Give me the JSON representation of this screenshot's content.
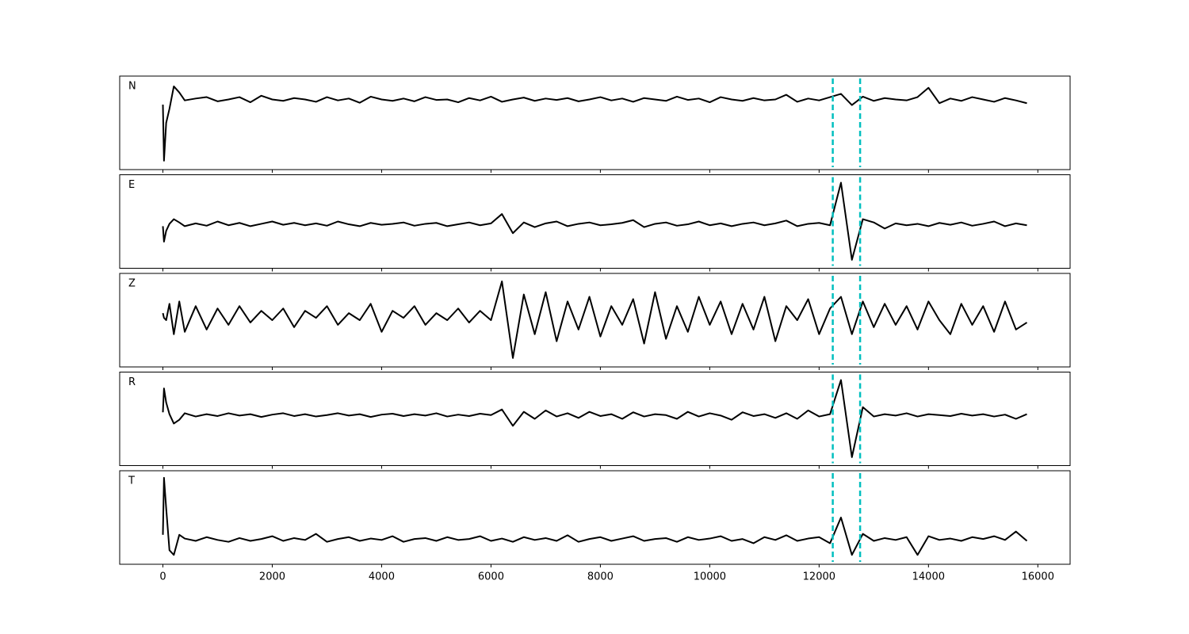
{
  "chart_data": {
    "type": "line",
    "x": [
      0,
      20,
      60,
      120,
      200,
      300,
      400,
      600,
      800,
      1000,
      1200,
      1400,
      1600,
      1800,
      2000,
      2200,
      2400,
      2600,
      2800,
      3000,
      3200,
      3400,
      3600,
      3800,
      4000,
      4200,
      4400,
      4600,
      4800,
      5000,
      5200,
      5400,
      5600,
      5800,
      6000,
      6200,
      6400,
      6600,
      6800,
      7000,
      7200,
      7400,
      7600,
      7800,
      8000,
      8200,
      8400,
      8600,
      8800,
      9000,
      9200,
      9400,
      9600,
      9800,
      10000,
      10200,
      10400,
      10600,
      10800,
      11000,
      11200,
      11400,
      11600,
      11800,
      12000,
      12200,
      12400,
      12600,
      12800,
      13000,
      13200,
      13400,
      13600,
      13800,
      14000,
      14200,
      14400,
      14600,
      14800,
      15000,
      15200,
      15400,
      15600,
      15800
    ],
    "series": [
      {
        "name": "N",
        "color": "#000000",
        "values": [
          0.39,
          -0.81,
          0.0,
          0.3,
          0.78,
          0.65,
          0.48,
          0.52,
          0.55,
          0.46,
          0.5,
          0.55,
          0.44,
          0.58,
          0.5,
          0.47,
          0.53,
          0.5,
          0.45,
          0.55,
          0.48,
          0.52,
          0.43,
          0.56,
          0.5,
          0.47,
          0.52,
          0.46,
          0.55,
          0.49,
          0.5,
          0.44,
          0.53,
          0.48,
          0.56,
          0.45,
          0.5,
          0.54,
          0.47,
          0.52,
          0.49,
          0.53,
          0.46,
          0.5,
          0.55,
          0.48,
          0.52,
          0.45,
          0.53,
          0.5,
          0.47,
          0.56,
          0.49,
          0.52,
          0.44,
          0.55,
          0.5,
          0.47,
          0.53,
          0.48,
          0.5,
          0.6,
          0.45,
          0.52,
          0.48,
          0.55,
          0.62,
          0.38,
          0.56,
          0.47,
          0.53,
          0.5,
          0.48,
          0.55,
          0.75,
          0.42,
          0.52,
          0.47,
          0.55,
          0.5,
          0.45,
          0.53,
          0.48,
          0.42
        ]
      },
      {
        "name": "E",
        "color": "#000000",
        "values": [
          -0.1,
          -0.43,
          -0.2,
          -0.05,
          0.05,
          -0.02,
          -0.1,
          -0.04,
          -0.09,
          0.0,
          -0.08,
          -0.03,
          -0.1,
          -0.05,
          0.0,
          -0.07,
          -0.03,
          -0.08,
          -0.04,
          -0.09,
          0.0,
          -0.06,
          -0.1,
          -0.03,
          -0.07,
          -0.05,
          -0.02,
          -0.09,
          -0.05,
          -0.03,
          -0.1,
          -0.06,
          -0.02,
          -0.08,
          -0.04,
          0.16,
          -0.25,
          -0.02,
          -0.12,
          -0.04,
          0.0,
          -0.1,
          -0.05,
          -0.02,
          -0.08,
          -0.06,
          -0.03,
          0.03,
          -0.12,
          -0.05,
          -0.02,
          -0.09,
          -0.06,
          0.0,
          -0.08,
          -0.04,
          -0.1,
          -0.05,
          -0.02,
          -0.08,
          -0.04,
          0.02,
          -0.1,
          -0.05,
          -0.03,
          -0.08,
          0.83,
          -0.82,
          0.05,
          -0.02,
          -0.15,
          -0.04,
          -0.08,
          -0.05,
          -0.1,
          -0.03,
          -0.07,
          -0.02,
          -0.09,
          -0.05,
          0.0,
          -0.1,
          -0.04,
          -0.08
        ]
      },
      {
        "name": "Z",
        "color": "#000000",
        "values": [
          0.15,
          0.05,
          0.0,
          0.35,
          -0.3,
          0.4,
          -0.25,
          0.3,
          -0.2,
          0.25,
          -0.1,
          0.3,
          -0.05,
          0.2,
          0.0,
          0.25,
          -0.15,
          0.2,
          0.05,
          0.3,
          -0.1,
          0.15,
          0.0,
          0.35,
          -0.25,
          0.2,
          0.05,
          0.3,
          -0.1,
          0.15,
          0.0,
          0.25,
          -0.05,
          0.2,
          0.0,
          0.83,
          -0.81,
          0.55,
          -0.3,
          0.6,
          -0.45,
          0.4,
          -0.2,
          0.5,
          -0.35,
          0.3,
          -0.1,
          0.45,
          -0.5,
          0.6,
          -0.4,
          0.3,
          -0.25,
          0.5,
          -0.1,
          0.4,
          -0.3,
          0.35,
          -0.2,
          0.5,
          -0.45,
          0.3,
          0.0,
          0.45,
          -0.3,
          0.25,
          0.5,
          -0.3,
          0.4,
          -0.15,
          0.35,
          -0.1,
          0.3,
          -0.2,
          0.4,
          0.0,
          -0.3,
          0.35,
          -0.1,
          0.3,
          -0.25,
          0.4,
          -0.2,
          -0.05
        ]
      },
      {
        "name": "R",
        "color": "#000000",
        "values": [
          0.14,
          0.65,
          0.35,
          0.1,
          -0.1,
          -0.02,
          0.12,
          0.05,
          0.1,
          0.06,
          0.12,
          0.07,
          0.1,
          0.04,
          0.09,
          0.12,
          0.06,
          0.1,
          0.05,
          0.08,
          0.12,
          0.07,
          0.1,
          0.04,
          0.09,
          0.11,
          0.06,
          0.1,
          0.07,
          0.12,
          0.05,
          0.09,
          0.06,
          0.11,
          0.08,
          0.2,
          -0.15,
          0.15,
          0.0,
          0.18,
          0.05,
          0.12,
          0.02,
          0.15,
          0.06,
          0.1,
          0.0,
          0.14,
          0.05,
          0.1,
          0.08,
          0.0,
          0.15,
          0.05,
          0.12,
          0.07,
          -0.02,
          0.14,
          0.06,
          0.1,
          0.02,
          0.12,
          0.0,
          0.18,
          0.05,
          0.1,
          0.83,
          -0.82,
          0.25,
          0.05,
          0.1,
          0.07,
          0.12,
          0.05,
          0.1,
          0.08,
          0.06,
          0.11,
          0.07,
          0.1,
          0.05,
          0.09,
          0.0,
          0.1
        ]
      },
      {
        "name": "T",
        "color": "#000000",
        "values": [
          -0.37,
          0.85,
          0.2,
          -0.7,
          -0.8,
          -0.37,
          -0.45,
          -0.5,
          -0.42,
          -0.48,
          -0.52,
          -0.44,
          -0.5,
          -0.46,
          -0.4,
          -0.5,
          -0.44,
          -0.48,
          -0.35,
          -0.52,
          -0.46,
          -0.42,
          -0.5,
          -0.45,
          -0.48,
          -0.4,
          -0.52,
          -0.46,
          -0.44,
          -0.5,
          -0.42,
          -0.48,
          -0.46,
          -0.4,
          -0.5,
          -0.45,
          -0.52,
          -0.42,
          -0.48,
          -0.44,
          -0.5,
          -0.38,
          -0.52,
          -0.46,
          -0.42,
          -0.5,
          -0.45,
          -0.4,
          -0.5,
          -0.46,
          -0.44,
          -0.52,
          -0.42,
          -0.48,
          -0.45,
          -0.4,
          -0.5,
          -0.46,
          -0.55,
          -0.42,
          -0.48,
          -0.38,
          -0.5,
          -0.45,
          -0.42,
          -0.55,
          0.0,
          -0.8,
          -0.35,
          -0.5,
          -0.44,
          -0.48,
          -0.42,
          -0.8,
          -0.4,
          -0.48,
          -0.45,
          -0.5,
          -0.42,
          -0.46,
          -0.4,
          -0.48,
          -0.3,
          -0.5
        ]
      }
    ],
    "xlim": [
      -790,
      16590
    ],
    "xticks": [
      0,
      2000,
      4000,
      6000,
      8000,
      10000,
      12000,
      14000,
      16000
    ],
    "ylim": [
      -1,
      1
    ],
    "vlines": [
      12250,
      12750
    ],
    "vline_color": "#00bfbf"
  }
}
